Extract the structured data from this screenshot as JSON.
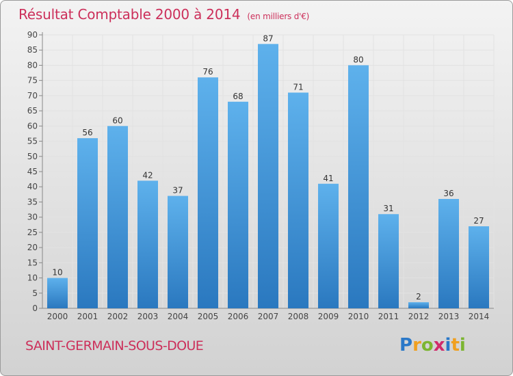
{
  "title": "Résultat Comptable 2000 à 2014",
  "subtitle": "(en milliers d'€)",
  "commune": "SAINT-GERMAIN-SOUS-DOUE",
  "logo": {
    "text": "Proxiti"
  },
  "colors": {
    "title": "#cc2f5a",
    "bar_light": "#5aaeea",
    "bar_dark": "#2a78bf"
  },
  "chart_data": {
    "type": "bar",
    "title": "Résultat Comptable 2000 à 2014",
    "subtitle": "(en milliers d'€)",
    "xlabel": "",
    "ylabel": "",
    "categories": [
      "2000",
      "2001",
      "2002",
      "2003",
      "2004",
      "2005",
      "2006",
      "2007",
      "2008",
      "2009",
      "2010",
      "2011",
      "2012",
      "2013",
      "2014"
    ],
    "values": [
      10,
      56,
      60,
      42,
      37,
      76,
      68,
      87,
      71,
      41,
      80,
      31,
      2,
      36,
      27
    ],
    "ylim": [
      0,
      90
    ],
    "yticks": [
      0,
      5,
      10,
      15,
      20,
      25,
      30,
      35,
      40,
      45,
      50,
      55,
      60,
      65,
      70,
      75,
      80,
      85,
      90
    ],
    "grid": true
  }
}
